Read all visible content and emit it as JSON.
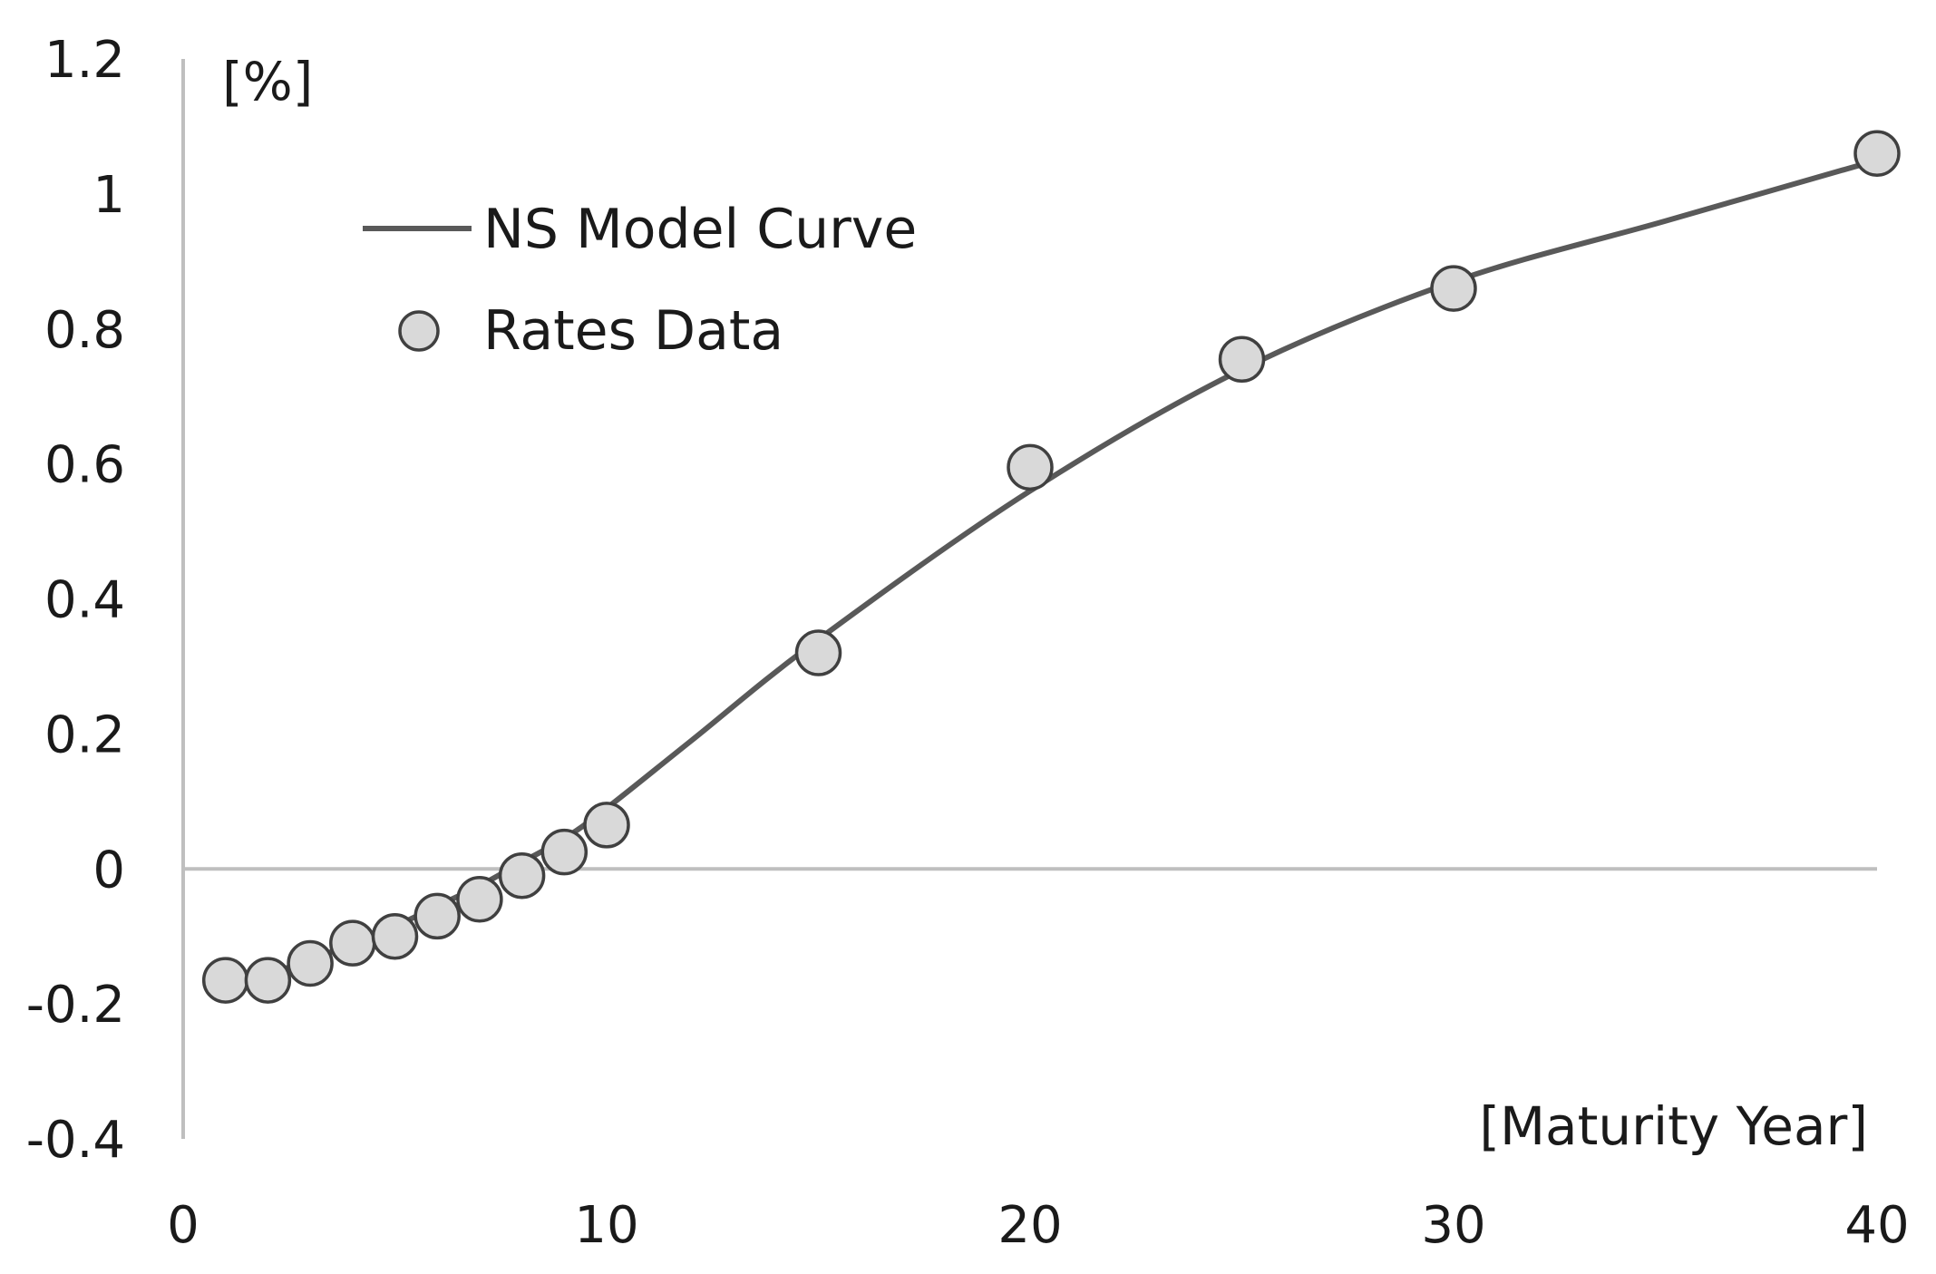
{
  "chart_data": {
    "type": "line",
    "xlabel": "[Maturity Year]",
    "ylabel": "[%]",
    "xlim": [
      0,
      40
    ],
    "ylim": [
      -0.4,
      1.2
    ],
    "x_ticks": [
      "0",
      "10",
      "20",
      "30",
      "40"
    ],
    "y_ticks": [
      "1.2",
      "1",
      "0.8",
      "0.6",
      "0.4",
      "0.2",
      "0",
      "-0.2",
      "-0.4"
    ],
    "grid": false,
    "legend_position": "top-left",
    "series": [
      {
        "name": "NS Model Curve",
        "kind": "line",
        "color": "#595959",
        "x": [
          1,
          2,
          3,
          4,
          5,
          6,
          7,
          8,
          9,
          10,
          12,
          15,
          20,
          25,
          30,
          35,
          40
        ],
        "values": [
          -0.165,
          -0.155,
          -0.135,
          -0.11,
          -0.085,
          -0.055,
          -0.025,
          0.01,
          0.045,
          0.09,
          0.19,
          0.34,
          0.56,
          0.74,
          0.87,
          0.96,
          1.05
        ]
      },
      {
        "name": "Rates Data",
        "kind": "scatter",
        "color": "#d9d9d9",
        "x": [
          1,
          2,
          3,
          4,
          5,
          6,
          7,
          8,
          9,
          10,
          15,
          20,
          25,
          30,
          40
        ],
        "values": [
          -0.165,
          -0.165,
          -0.14,
          -0.11,
          -0.1,
          -0.07,
          -0.045,
          -0.01,
          0.025,
          0.065,
          0.32,
          0.595,
          0.755,
          0.86,
          1.06
        ]
      }
    ]
  }
}
